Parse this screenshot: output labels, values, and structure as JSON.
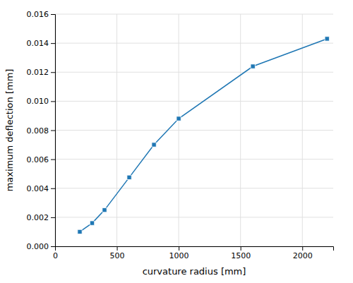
{
  "chart_data": {
    "type": "line",
    "xlabel": "curvature radius [mm]",
    "ylabel": "maximum deflection [mm]",
    "x": [
      200,
      300,
      400,
      600,
      800,
      1000,
      1600,
      2200
    ],
    "values": [
      0.001,
      0.0016,
      0.0025,
      0.00475,
      0.007,
      0.0088,
      0.0124,
      0.0143
    ],
    "xlim": [
      0,
      2250
    ],
    "ylim": [
      0,
      0.016
    ],
    "xticks": [
      0,
      500,
      1000,
      1500,
      2000
    ],
    "yticks": [
      {
        "value": 0,
        "label": "0.000"
      },
      0.002,
      0.004,
      0.006,
      0.008,
      {
        "value": 0.01,
        "label": "0.010"
      },
      0.012,
      0.014,
      0.016
    ],
    "marker": "square",
    "grid": true
  }
}
